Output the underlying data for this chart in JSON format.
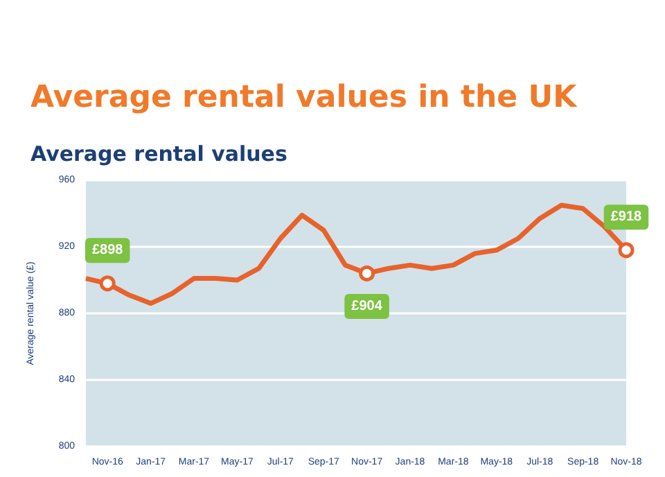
{
  "chart_data": {
    "type": "line",
    "title": "Average rental values in the UK",
    "subtitle": "Average rental values",
    "ylabel": "Average rental value (£)",
    "categories": [
      null,
      "Nov-16",
      null,
      "Jan-17",
      null,
      "Mar-17",
      null,
      "May-17",
      null,
      "Jul-17",
      null,
      "Sep-17",
      null,
      "Nov-17",
      null,
      "Jan-18",
      null,
      "Mar-18",
      null,
      "May-18",
      null,
      "Jul-18",
      null,
      "Sep-18",
      null,
      "Nov-18"
    ],
    "series": [
      {
        "color": "#e8622c",
        "values": [
          901,
          898,
          891,
          886,
          892,
          901,
          901,
          900,
          907,
          925,
          939,
          930,
          909,
          904,
          907,
          909,
          907,
          909,
          916,
          918,
          925,
          937,
          945,
          943,
          932,
          918
        ],
        "value_labels": [
          null,
          "£898",
          null,
          null,
          null,
          null,
          null,
          null,
          null,
          null,
          null,
          null,
          null,
          "£904",
          null,
          null,
          null,
          null,
          null,
          null,
          null,
          null,
          null,
          null,
          null,
          "£918"
        ]
      }
    ],
    "ylim": [
      800,
      960
    ],
    "yticks": [
      800,
      840,
      880,
      920,
      960
    ],
    "grid": "y"
  }
}
